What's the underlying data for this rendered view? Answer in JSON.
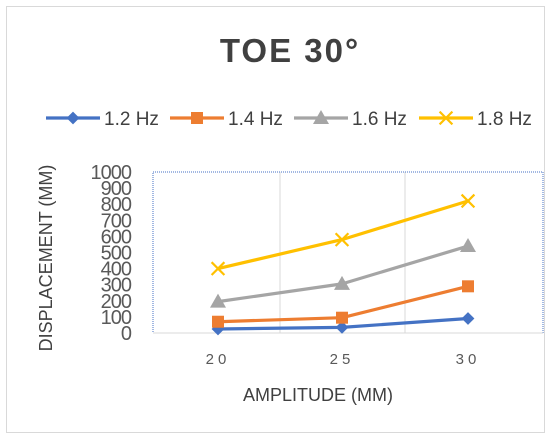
{
  "chart_data": {
    "type": "line",
    "title": "TOE 30°",
    "xlabel": "AMPLITUDE (MM)",
    "ylabel": "DISPLACEMENT (MM)",
    "categories": [
      "20",
      "25",
      "30"
    ],
    "ylim": [
      0,
      1000
    ],
    "yticks": [
      0,
      100,
      200,
      300,
      400,
      500,
      600,
      700,
      800,
      900,
      1000
    ],
    "grid": true,
    "legend_position": "top",
    "series": [
      {
        "name": "1.2 Hz",
        "values": [
          25,
          35,
          90
        ],
        "color": "#4472C4",
        "marker": "diamond"
      },
      {
        "name": "1.4 Hz",
        "values": [
          70,
          95,
          290
        ],
        "color": "#ED7D31",
        "marker": "square"
      },
      {
        "name": "1.6 Hz",
        "values": [
          195,
          305,
          540
        ],
        "color": "#A5A5A5",
        "marker": "triangle"
      },
      {
        "name": "1.8 Hz",
        "values": [
          400,
          580,
          820
        ],
        "color": "#FFC000",
        "marker": "x"
      }
    ]
  }
}
